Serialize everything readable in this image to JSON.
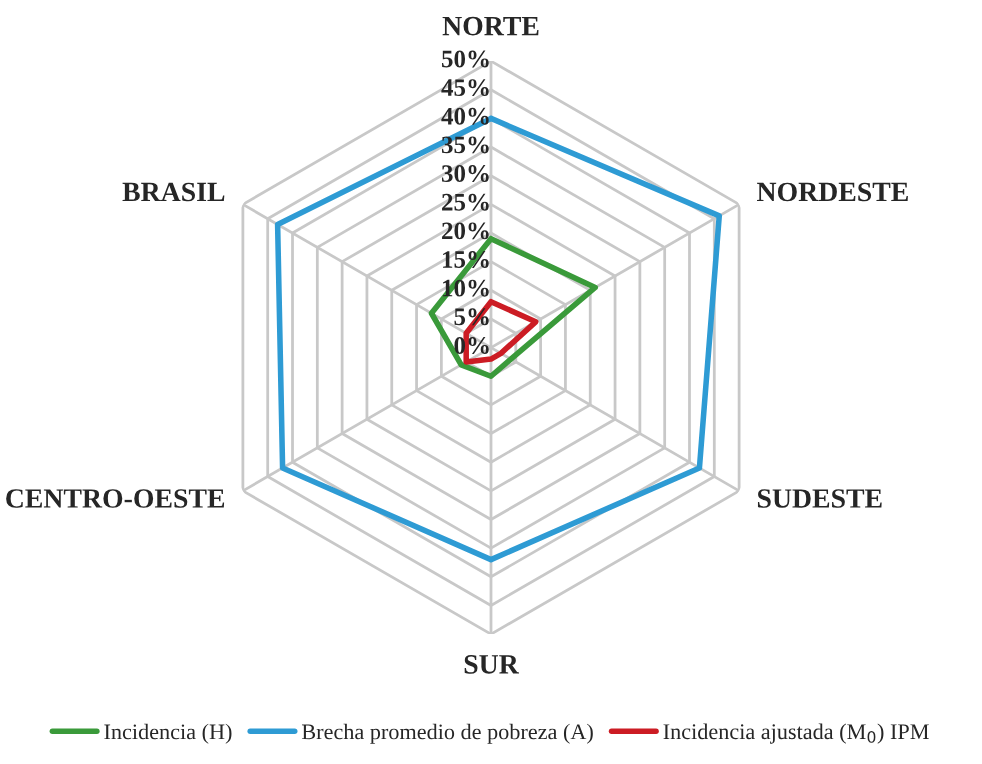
{
  "chart_data": {
    "type": "radar",
    "categories": [
      "NORTE",
      "NORDESTE",
      "SUDESTE",
      "SUR",
      "CENTRO-OESTE",
      "BRASIL"
    ],
    "series": [
      {
        "name": "Incidencia (H)",
        "color": "#3a9a3a",
        "values": [
          19,
          21,
          4,
          5,
          6,
          12
        ]
      },
      {
        "name": "Brecha promedio de pobreza (A)",
        "color": "#2e9bd4",
        "values": [
          40,
          46,
          42,
          37,
          42,
          43
        ]
      },
      {
        "name": "Incidencia ajustada (M$_{0}$) IPM",
        "color": "#cc1c24",
        "values": [
          8,
          9,
          2,
          2,
          5,
          5
        ]
      }
    ],
    "ylim": [
      0,
      50
    ],
    "yticks": [
      {
        "value": 0,
        "label": "0%"
      },
      {
        "value": 5,
        "label": "5%"
      },
      {
        "value": 10,
        "label": "10%"
      },
      {
        "value": 15,
        "label": "15%"
      },
      {
        "value": 20,
        "label": "20%"
      },
      {
        "value": 25,
        "label": "25%"
      },
      {
        "value": 30,
        "label": "30%"
      },
      {
        "value": 35,
        "label": "35%"
      },
      {
        "value": 40,
        "label": "40%"
      },
      {
        "value": 45,
        "label": "45%"
      },
      {
        "value": 50,
        "label": "50%"
      }
    ],
    "grid": true,
    "legend": "bottom",
    "line_style": "solid",
    "marker": "none"
  }
}
